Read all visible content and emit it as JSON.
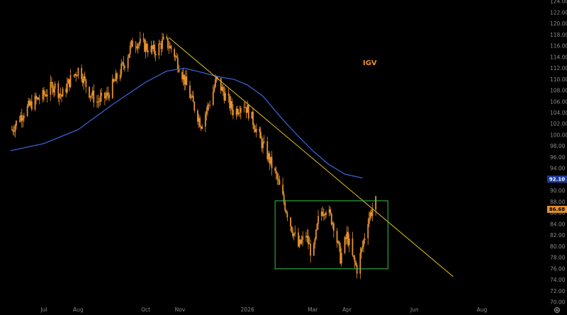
{
  "chart_data": {
    "type": "candlestick",
    "ticker_label": "IGV",
    "ylim": [
      70,
      124
    ],
    "y_ticks": [
      "70.00",
      "72.00",
      "74.00",
      "76.00",
      "78.00",
      "80.00",
      "82.00",
      "84.00",
      "86.00",
      "88.00",
      "90.00",
      "92.00",
      "94.00",
      "96.00",
      "98.00",
      "100.00",
      "102.00",
      "104.00",
      "106.00",
      "108.00",
      "110.00",
      "112.00",
      "114.00",
      "116.00",
      "118.00",
      "120.00",
      "122.00",
      "124.00"
    ],
    "x_ticks": [
      {
        "label": "Jul",
        "date": "2025-07-01"
      },
      {
        "label": "Aug",
        "date": "2025-08-01"
      },
      {
        "label": "Oct",
        "date": "2025-10-01"
      },
      {
        "label": "Nov",
        "date": "2025-11-01"
      },
      {
        "label": "2026",
        "date": "2026-01-01"
      },
      {
        "label": "Mar",
        "date": "2026-03-01"
      },
      {
        "label": "Apr",
        "date": "2026-04-01"
      },
      {
        "label": "Jun",
        "date": "2026-06-01"
      },
      {
        "label": "Aug",
        "date": "2026-08-01"
      }
    ],
    "price_path": [
      [
        "2025-06-02",
        101
      ],
      [
        "2025-06-12",
        104
      ],
      [
        "2025-06-22",
        106
      ],
      [
        "2025-06-30",
        107
      ],
      [
        "2025-07-10",
        109
      ],
      [
        "2025-07-17",
        107
      ],
      [
        "2025-07-25",
        110
      ],
      [
        "2025-08-02",
        112
      ],
      [
        "2025-08-10",
        108
      ],
      [
        "2025-08-18",
        106
      ],
      [
        "2025-08-27",
        107
      ],
      [
        "2025-09-04",
        110
      ],
      [
        "2025-09-12",
        113
      ],
      [
        "2025-09-20",
        117
      ],
      [
        "2025-09-30",
        116
      ],
      [
        "2025-10-09",
        115
      ],
      [
        "2025-10-18",
        117
      ],
      [
        "2025-10-26",
        115
      ],
      [
        "2025-11-03",
        111
      ],
      [
        "2025-11-12",
        106
      ],
      [
        "2025-11-20",
        102
      ],
      [
        "2025-11-28",
        106
      ],
      [
        "2025-12-04",
        110
      ],
      [
        "2025-12-12",
        107
      ],
      [
        "2025-12-20",
        104
      ],
      [
        "2025-12-28",
        106
      ],
      [
        "2026-01-05",
        103
      ],
      [
        "2026-01-13",
        99
      ],
      [
        "2026-01-20",
        96
      ],
      [
        "2026-01-28",
        92
      ],
      [
        "2026-02-03",
        88
      ],
      [
        "2026-02-09",
        84
      ],
      [
        "2026-02-16",
        80
      ],
      [
        "2026-02-23",
        82
      ],
      [
        "2026-03-01",
        78
      ],
      [
        "2026-03-07",
        86
      ],
      [
        "2026-03-13",
        87
      ],
      [
        "2026-03-20",
        84
      ],
      [
        "2026-03-26",
        78
      ],
      [
        "2026-04-01",
        82
      ],
      [
        "2026-04-06",
        78
      ],
      [
        "2026-04-10",
        76
      ],
      [
        "2026-04-15",
        80
      ],
      [
        "2026-04-20",
        85
      ],
      [
        "2026-04-27",
        88
      ]
    ],
    "moving_average": {
      "color": "#3a5fd0",
      "points": [
        [
          "2025-06-01",
          97.2
        ],
        [
          "2025-07-01",
          98.5
        ],
        [
          "2025-08-01",
          101
        ],
        [
          "2025-09-01",
          105.5
        ],
        [
          "2025-10-01",
          109.5
        ],
        [
          "2025-10-20",
          111.5
        ],
        [
          "2025-11-05",
          112
        ],
        [
          "2025-11-20",
          111.3
        ],
        [
          "2025-12-05",
          110.5
        ],
        [
          "2025-12-20",
          110
        ],
        [
          "2026-01-01",
          109
        ],
        [
          "2026-01-15",
          107
        ],
        [
          "2026-02-01",
          103
        ],
        [
          "2026-02-15",
          100
        ],
        [
          "2026-03-01",
          97.2
        ],
        [
          "2026-03-15",
          94.8
        ],
        [
          "2026-03-30",
          93
        ],
        [
          "2026-04-15",
          92.3
        ]
      ]
    },
    "trendline": {
      "color": "#e0c020",
      "start": [
        "2025-10-22",
        117.5
      ],
      "end": [
        "2026-07-06",
        74.6
      ]
    },
    "range_box": {
      "color": "#33c24a",
      "x_start": "2026-01-26",
      "x_end": "2026-05-08",
      "y_low": 76,
      "y_high": 88.2
    },
    "price_tags": [
      {
        "value": "92.10",
        "bg": "#1e3a9a",
        "fg": "#ffffff"
      },
      {
        "value": "86.68",
        "bg": "#e8922e",
        "fg": "#000000"
      }
    ],
    "colors": {
      "background": "#000000",
      "candle": "#e8922e",
      "axis_text": "#8a8a8a"
    },
    "grid": false
  }
}
